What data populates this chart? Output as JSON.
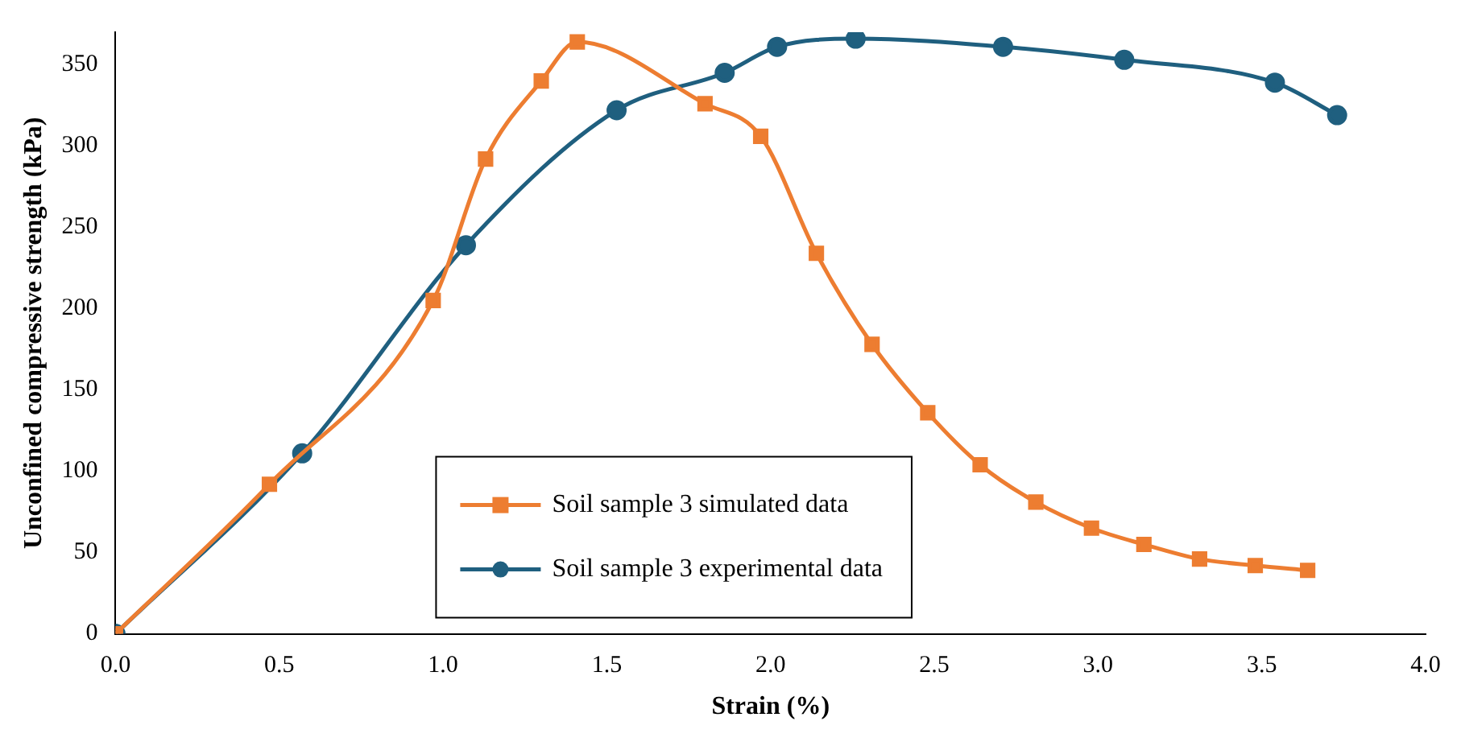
{
  "chart_data": {
    "type": "line",
    "xlabel": "Strain (%)",
    "ylabel": "Unconfined compressive strength (kPa)",
    "xlim": [
      0,
      4
    ],
    "xticks": [
      {
        "value": 0,
        "label": "0.0"
      },
      {
        "value": 0.5,
        "label": "0.5"
      },
      {
        "value": 1,
        "label": "1.0"
      },
      {
        "value": 1.5,
        "label": "1.5"
      },
      {
        "value": 2,
        "label": "2.0"
      },
      {
        "value": 2.5,
        "label": "2.5"
      },
      {
        "value": 3,
        "label": "3.0"
      },
      {
        "value": 3.5,
        "label": "3.5"
      },
      {
        "value": 4,
        "label": "4.0"
      }
    ],
    "ylim": [
      0,
      370
    ],
    "yticks": [
      0,
      50,
      100,
      150,
      200,
      250,
      300,
      350
    ],
    "grid": false,
    "legend": "bottom",
    "series": [
      {
        "name": "Soil sample 3 simulated data",
        "color": "#ed7d31",
        "marker": "square",
        "x": [
          0,
          0.47,
          0.97,
          1.13,
          1.3,
          1.41,
          1.8,
          1.97,
          2.14,
          2.31,
          2.48,
          2.64,
          2.81,
          2.98,
          3.14,
          3.31,
          3.48,
          3.64
        ],
        "values": [
          0,
          92,
          205,
          292,
          340,
          364,
          326,
          306,
          234,
          178,
          136,
          104,
          81,
          65,
          55,
          46,
          42,
          39
        ]
      },
      {
        "name": "Soil sample 3 experimental data",
        "color": "#1f5f7f",
        "marker": "circle",
        "x": [
          0,
          0.57,
          1.07,
          1.53,
          1.86,
          2.02,
          2.26,
          2.71,
          3.08,
          3.54,
          3.73
        ],
        "values": [
          0,
          111,
          239,
          322,
          345,
          361,
          366,
          361,
          353,
          339,
          319
        ]
      }
    ]
  }
}
